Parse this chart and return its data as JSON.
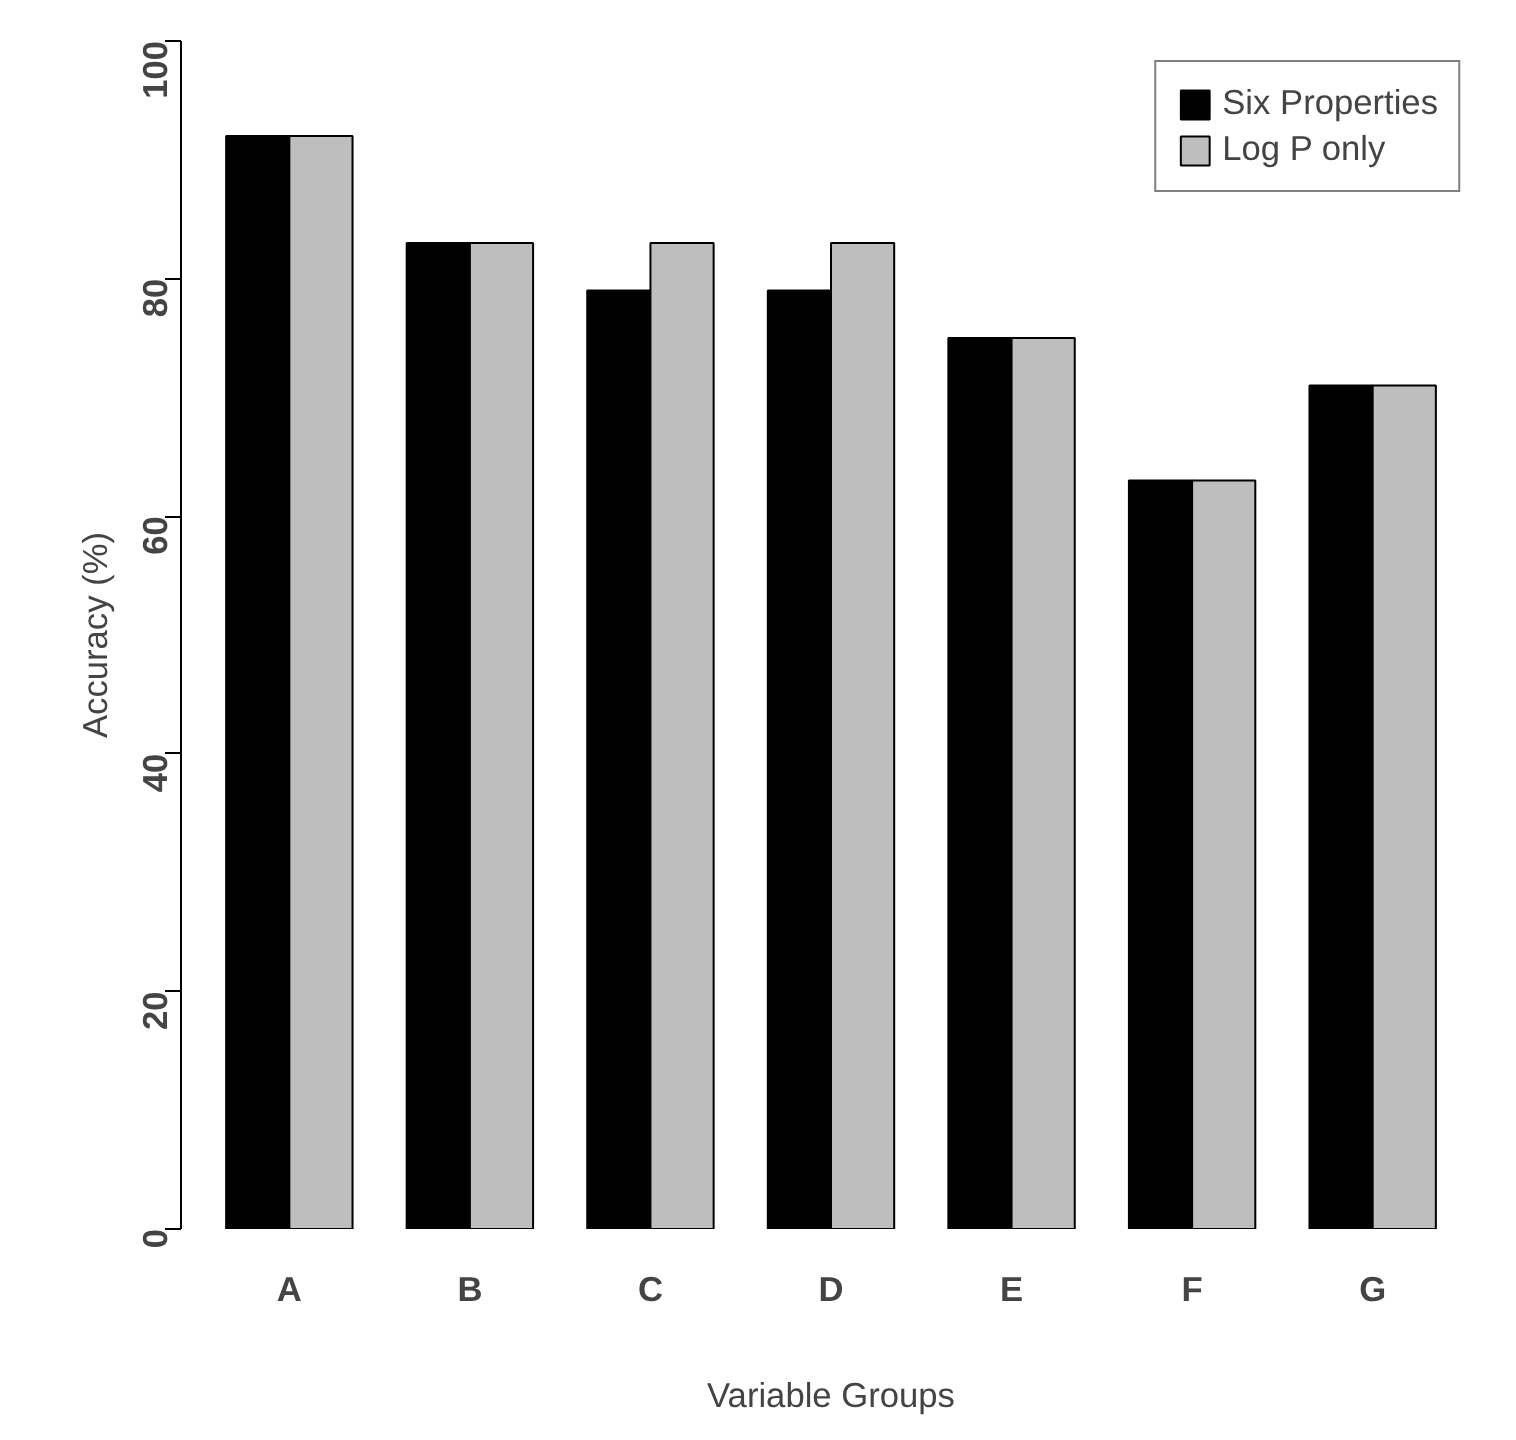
{
  "chart_data": {
    "type": "bar",
    "xlabel": "Variable Groups",
    "ylabel": "Accuracy (%)",
    "categories": [
      "A",
      "B",
      "C",
      "D",
      "E",
      "F",
      "G"
    ],
    "series": [
      {
        "name": "Six Properties",
        "color": "#000000",
        "values": [
          92,
          83,
          79,
          79,
          75,
          63,
          71
        ]
      },
      {
        "name": "Log P only",
        "color": "#bebebe",
        "values": [
          92,
          83,
          83,
          83,
          75,
          63,
          71
        ]
      }
    ],
    "ylim": [
      0,
      100
    ],
    "yticks": [
      0,
      20,
      40,
      60,
      80,
      100
    ],
    "grid": false,
    "legend": "top right"
  }
}
